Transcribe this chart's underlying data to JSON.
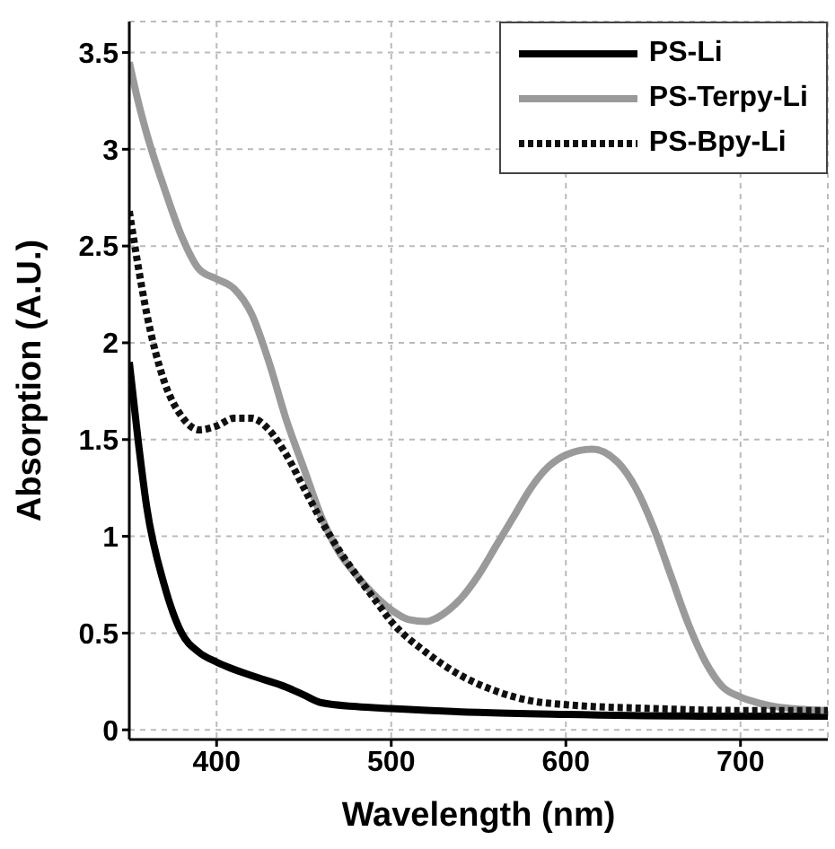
{
  "chart_data": {
    "type": "line",
    "xlabel": "Wavelength (nm)",
    "ylabel": "Absorption (A.U.)",
    "xlim": [
      350,
      750
    ],
    "ylim": [
      -0.05,
      3.66
    ],
    "xticks": [
      400,
      500,
      600,
      700
    ],
    "yticks": [
      0,
      0.5,
      1,
      1.5,
      2,
      2.5,
      3,
      3.5
    ],
    "grid": true,
    "legend": "top right",
    "marker": "none",
    "series": [
      {
        "name": "PS-Li",
        "color": "#000000",
        "line_style": "solid",
        "x": [
          350,
          355,
          360,
          370,
          380,
          390,
          400,
          420,
          440,
          450,
          460,
          480,
          500,
          550,
          600,
          700,
          750
        ],
        "values": [
          1.9,
          1.5,
          1.15,
          0.75,
          0.5,
          0.4,
          0.35,
          0.28,
          0.22,
          0.18,
          0.14,
          0.12,
          0.11,
          0.09,
          0.08,
          0.07,
          0.07
        ]
      },
      {
        "name": "PS-Terpy-Li",
        "color": "#9a9a9a",
        "line_style": "solid",
        "x": [
          350,
          355,
          360,
          370,
          380,
          390,
          400,
          410,
          420,
          430,
          440,
          450,
          460,
          470,
          480,
          490,
          500,
          510,
          520,
          530,
          540,
          550,
          560,
          570,
          580,
          590,
          600,
          615,
          630,
          640,
          650,
          660,
          670,
          680,
          690,
          700,
          710,
          720,
          750
        ],
        "values": [
          3.45,
          3.25,
          3.08,
          2.8,
          2.55,
          2.38,
          2.33,
          2.28,
          2.15,
          1.9,
          1.6,
          1.35,
          1.1,
          0.92,
          0.8,
          0.7,
          0.62,
          0.57,
          0.56,
          0.6,
          0.68,
          0.8,
          0.95,
          1.1,
          1.25,
          1.36,
          1.42,
          1.45,
          1.38,
          1.25,
          1.05,
          0.8,
          0.55,
          0.35,
          0.22,
          0.17,
          0.14,
          0.12,
          0.1
        ]
      },
      {
        "name": "PS-Bpy-Li",
        "color": "#111111",
        "line_style": "dotted",
        "x": [
          350,
          355,
          360,
          370,
          380,
          390,
          400,
          410,
          420,
          430,
          440,
          450,
          460,
          470,
          480,
          490,
          500,
          520,
          540,
          560,
          580,
          600,
          650,
          700,
          750
        ],
        "values": [
          2.68,
          2.4,
          2.15,
          1.8,
          1.62,
          1.55,
          1.57,
          1.61,
          1.61,
          1.55,
          1.42,
          1.25,
          1.08,
          0.93,
          0.8,
          0.68,
          0.56,
          0.4,
          0.28,
          0.2,
          0.15,
          0.13,
          0.11,
          0.1,
          0.1
        ]
      }
    ]
  }
}
